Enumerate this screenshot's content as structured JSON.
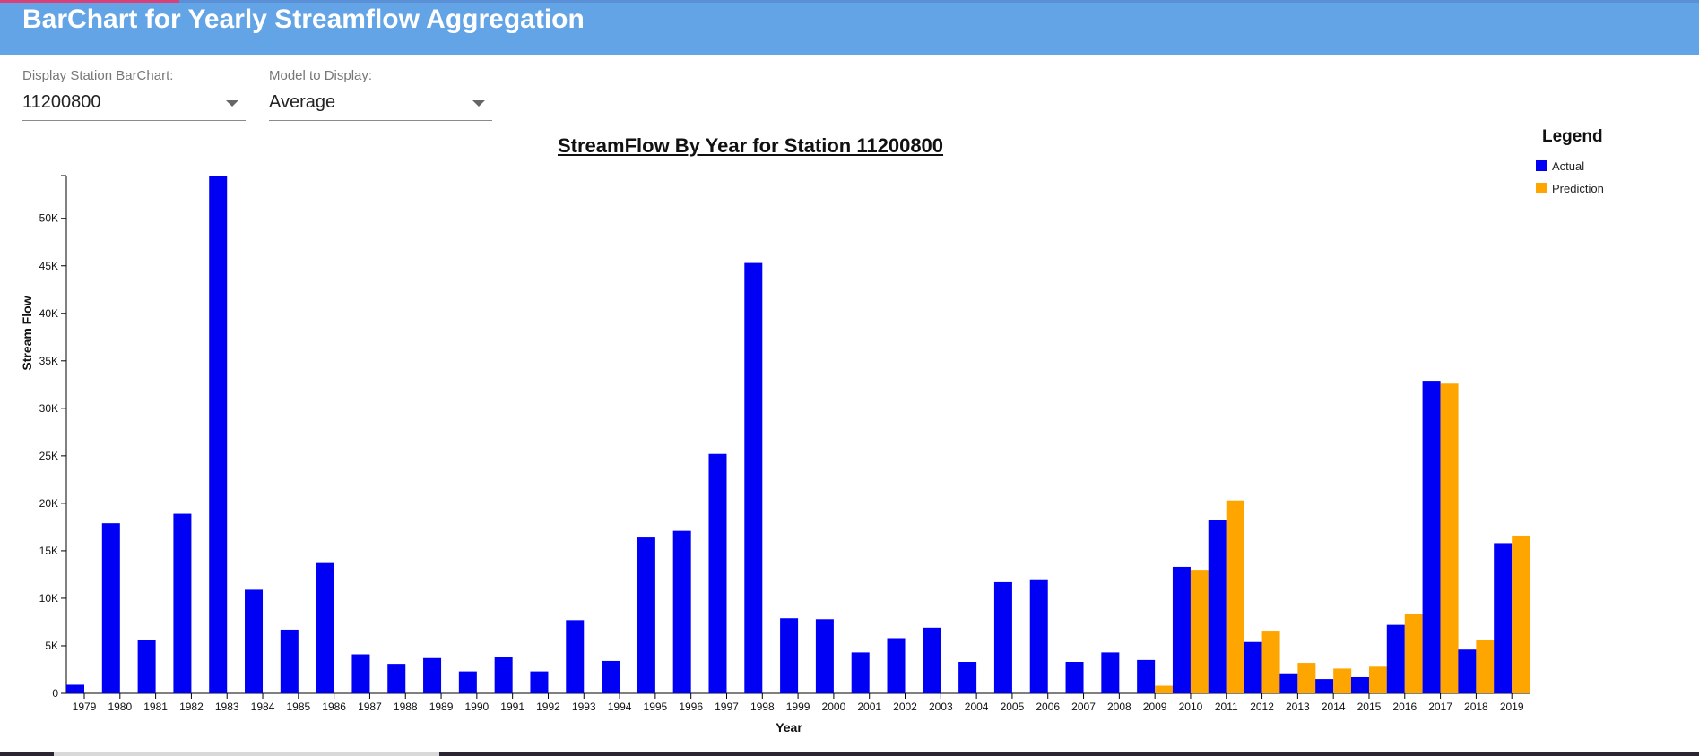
{
  "header": {
    "title": "BarChart for Yearly Streamflow Aggregation"
  },
  "controls": {
    "station_label": "Display Station BarChart:",
    "station_value": "11200800",
    "model_label": "Model to Display:",
    "model_value": "Average"
  },
  "legend": {
    "title": "Legend",
    "items": [
      {
        "label": "Actual",
        "color": "#0000f5"
      },
      {
        "label": "Prediction",
        "color": "#ffa500"
      }
    ]
  },
  "chart_data": {
    "type": "bar",
    "title": "StreamFlow By Year for Station 11200800",
    "xlabel": "Year",
    "ylabel": "Stream Flow",
    "ylim": [
      0,
      54500
    ],
    "yticks": [
      0,
      5000,
      10000,
      15000,
      20000,
      25000,
      30000,
      35000,
      40000,
      45000,
      50000
    ],
    "ytick_labels": [
      "0",
      "5K",
      "10K",
      "15K",
      "20K",
      "25K",
      "30K",
      "35K",
      "40K",
      "45K",
      "50K"
    ],
    "categories": [
      "1979",
      "1980",
      "1981",
      "1982",
      "1983",
      "1984",
      "1985",
      "1986",
      "1987",
      "1988",
      "1989",
      "1990",
      "1991",
      "1992",
      "1993",
      "1994",
      "1995",
      "1996",
      "1997",
      "1998",
      "1999",
      "2000",
      "2001",
      "2002",
      "2003",
      "2004",
      "2005",
      "2006",
      "2007",
      "2008",
      "2009",
      "2010",
      "2011",
      "2012",
      "2013",
      "2014",
      "2015",
      "2016",
      "2017",
      "2018",
      "2019"
    ],
    "series": [
      {
        "name": "Actual",
        "color": "#0000f5",
        "values": [
          900,
          17900,
          5600,
          18900,
          54500,
          10900,
          6700,
          13800,
          4100,
          3100,
          3700,
          2300,
          3800,
          2300,
          7700,
          3400,
          16400,
          17100,
          25200,
          45300,
          7900,
          7800,
          4300,
          5800,
          6900,
          3300,
          11700,
          12000,
          3300,
          4300,
          3500,
          13300,
          18200,
          5400,
          2100,
          1500,
          1700,
          7200,
          32900,
          4600,
          15800
        ]
      },
      {
        "name": "Prediction",
        "color": "#ffa500",
        "values": [
          null,
          null,
          null,
          null,
          null,
          null,
          null,
          null,
          null,
          null,
          null,
          null,
          null,
          null,
          null,
          null,
          null,
          null,
          null,
          null,
          null,
          null,
          null,
          null,
          null,
          null,
          null,
          null,
          null,
          null,
          800,
          13000,
          20300,
          6500,
          3200,
          2600,
          2800,
          8300,
          32600,
          5600,
          16600
        ]
      }
    ],
    "legend": "top-right",
    "grid": false
  }
}
